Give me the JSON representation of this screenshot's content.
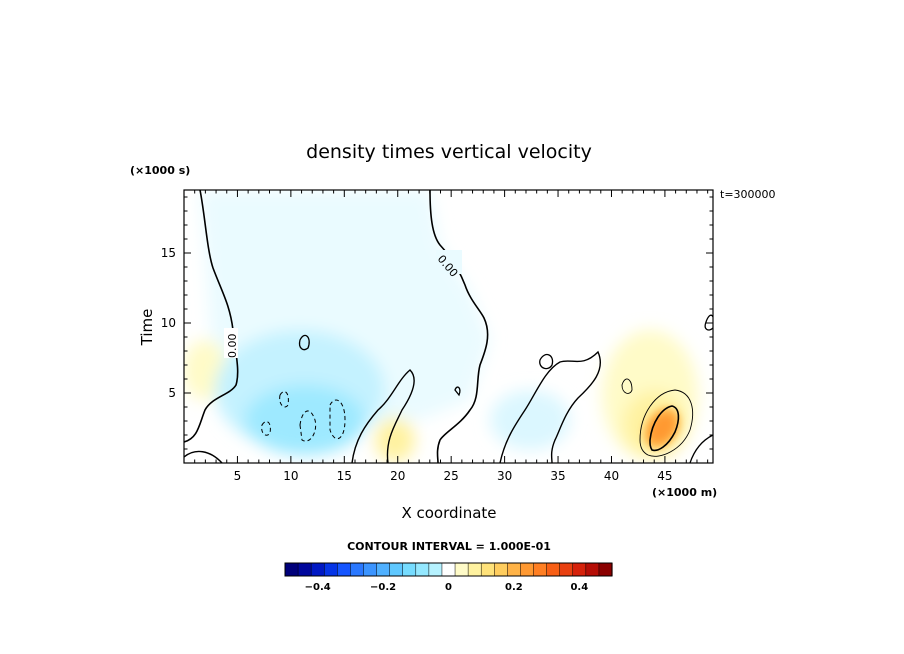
{
  "chart_data": {
    "type": "heatmap",
    "title": "density times vertical velocity",
    "xlabel": "X coordinate",
    "ylabel": "Time",
    "x_unit": "(×1000 m)",
    "y_unit": "(×1000 s)",
    "time_stamp": "t=300000",
    "xlim": [
      0,
      49.5
    ],
    "ylim": [
      0,
      19.5
    ],
    "x_ticks": [
      5,
      10,
      15,
      20,
      25,
      30,
      35,
      40,
      45
    ],
    "x_tick_labels": [
      "5",
      "10",
      "15",
      "20",
      "25",
      "30",
      "35",
      "40",
      "45"
    ],
    "y_ticks": [
      5,
      10,
      15
    ],
    "y_tick_labels": [
      "5",
      "10",
      "15"
    ],
    "contour_interval_text": "CONTOUR INTERVAL = 1.000E-01",
    "contour_labels": [
      "0.00",
      "0.00"
    ],
    "colorbar": {
      "range": [
        -0.5,
        0.5
      ],
      "step": 0.04,
      "tick_values": [
        -0.4,
        -0.2,
        0,
        0.2,
        0.4
      ],
      "tick_labels": [
        "−0.4",
        "−0.2",
        "0",
        "0.2",
        "0.4"
      ],
      "colors": [
        "#00007a",
        "#00079c",
        "#0018c4",
        "#0534e6",
        "#1555ff",
        "#2a78ff",
        "#3b94ff",
        "#4fb0ff",
        "#5fc8ff",
        "#76dcff",
        "#94e8ff",
        "#b6f2ff",
        "#ffffff",
        "#fffbc8",
        "#fff2a0",
        "#ffe27a",
        "#ffcd5e",
        "#ffb347",
        "#ff9932",
        "#ff7f23",
        "#f85f15",
        "#e84010",
        "#d5210a",
        "#b50d05",
        "#8a0000"
      ]
    },
    "field_features": [
      {
        "x": 45.0,
        "y": 2.5,
        "value": 0.28,
        "sign": "positive"
      },
      {
        "x": 44.5,
        "y": 5.5,
        "value": 0.08,
        "sign": "positive"
      },
      {
        "x": 12.5,
        "y": 2.5,
        "value": -0.12,
        "sign": "negative"
      },
      {
        "x": 7.0,
        "y": 6.5,
        "value": -0.08,
        "sign": "negative"
      },
      {
        "x": 20.5,
        "y": 2.0,
        "value": 0.05,
        "sign": "positive"
      },
      {
        "x": 15.0,
        "y": 12.0,
        "value": -0.02,
        "sign": "negative"
      }
    ]
  }
}
